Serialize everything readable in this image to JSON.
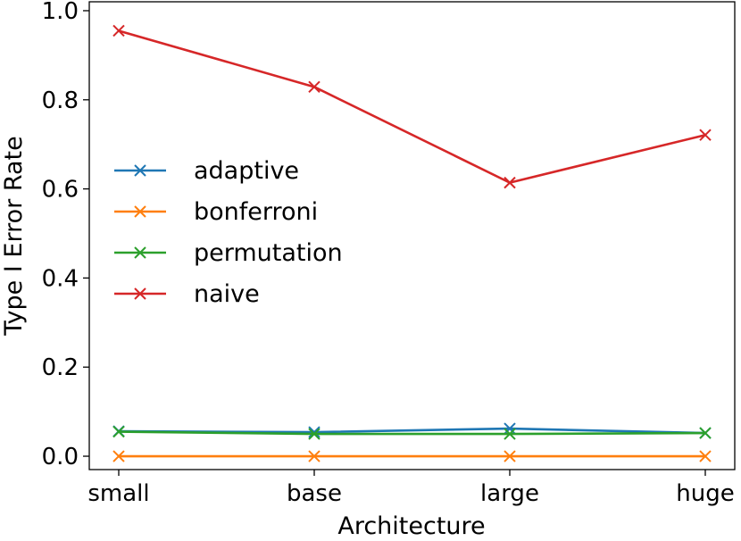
{
  "chart_data": {
    "type": "line",
    "title": "",
    "xlabel": "Architecture",
    "ylabel": "Type I Error Rate",
    "categories": [
      "small",
      "base",
      "large",
      "huge"
    ],
    "ylim": [
      -0.03,
      1.02
    ],
    "yticks": [
      0.0,
      0.2,
      0.4,
      0.6,
      0.8,
      1.0
    ],
    "ytick_labels": [
      "0.0",
      "0.2",
      "0.4",
      "0.6",
      "0.8",
      "1.0"
    ],
    "marker": "x",
    "grid": false,
    "legend_position": "center-left",
    "series": [
      {
        "name": "adaptive",
        "color": "#1f77b4",
        "values": [
          0.056,
          0.054,
          0.062,
          0.052
        ]
      },
      {
        "name": "bonferroni",
        "color": "#ff7f0e",
        "values": [
          0.0,
          0.0,
          0.0,
          0.0
        ]
      },
      {
        "name": "permutation",
        "color": "#2ca02c",
        "values": [
          0.055,
          0.05,
          0.05,
          0.052
        ]
      },
      {
        "name": "naive",
        "color": "#d62728",
        "values": [
          0.955,
          0.829,
          0.614,
          0.721
        ]
      }
    ]
  }
}
